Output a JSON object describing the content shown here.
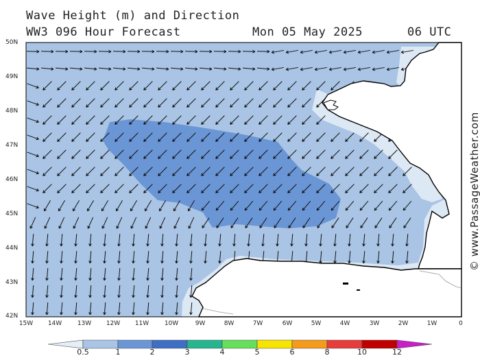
{
  "title_line1": "Wave Height (m) and Direction",
  "title_line2": "WW3 096 Hour Forecast",
  "date": "Mon 05 May 2025",
  "time": "06 UTC",
  "credit": "© www.PassageWeather.com",
  "lat_labels": [
    "50N",
    "49N",
    "48N",
    "47N",
    "46N",
    "45N",
    "44N",
    "43N",
    "42N"
  ],
  "lon_labels": [
    "15W",
    "14W",
    "13W",
    "12W",
    "11W",
    "10W",
    "9W",
    "8W",
    "7W",
    "6W",
    "5W",
    "4W",
    "3W",
    "2W",
    "1W",
    "0"
  ],
  "map_extent": {
    "lon_min": -15,
    "lon_max": 0,
    "lat_min": 42,
    "lat_max": 50
  },
  "wave_colors": {
    "below_0_5": "#dde8f5",
    "0_5_to_1": "#a9c4e4",
    "1_to_2": "#6a96d6",
    "land": "#ffffff",
    "coast": "#000000"
  },
  "colorbar": {
    "labels": [
      "0.5",
      "1",
      "2",
      "3",
      "4",
      "5",
      "6",
      "8",
      "10",
      "12"
    ],
    "colors": [
      "#e6eef8",
      "#a9c4e4",
      "#6a96d6",
      "#3f6fc4",
      "#27b58f",
      "#66e05a",
      "#f7e400",
      "#f59b1b",
      "#e63c3c",
      "#c00000",
      "#c81fc8"
    ]
  },
  "arrow_direction": "mostly from the northeast, turning north in the south and east over the northwest"
}
